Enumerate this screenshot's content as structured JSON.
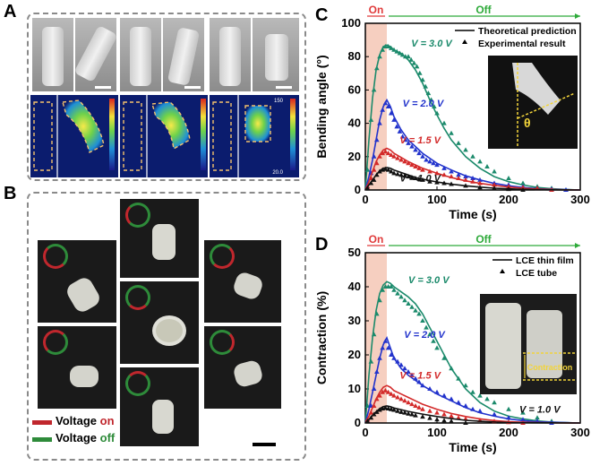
{
  "panels": {
    "a": "A",
    "b": "B",
    "c": "C",
    "d": "D"
  },
  "panel_a": {
    "colorbar_max": "150",
    "colorbar_min": "20.0"
  },
  "panel_b": {
    "legend": {
      "prefix": "Voltage",
      "on_word": "on",
      "off_word": "off",
      "on_color": "#c0272d",
      "off_color": "#2e8b3a"
    }
  },
  "colors": {
    "v30": "#1b8a6b",
    "v20": "#2233cc",
    "v15": "#d32a2a",
    "v10": "#111111",
    "on_band": "#f6cfc0",
    "on_text": "#e03a3a",
    "off_text": "#2eaa3a"
  },
  "chart_data": [
    {
      "type": "line",
      "panel": "C",
      "xlabel": "Time (s)",
      "ylabel": "Bending angle (°)",
      "xlim": [
        0,
        300
      ],
      "ylim": [
        0,
        100
      ],
      "xticks": [
        0,
        100,
        200,
        300
      ],
      "yticks": [
        0,
        20,
        40,
        60,
        80,
        100
      ],
      "on_label": "On",
      "off_label": "Off",
      "on_range": [
        0,
        30
      ],
      "legend": [
        "Theoretical prediction",
        "Experimental result"
      ],
      "inset_label": "θ",
      "series": [
        {
          "name": "V = 3.0 V",
          "color_key": "v30",
          "theory_x": [
            0,
            5,
            10,
            15,
            20,
            25,
            30,
            35,
            40,
            50,
            60,
            70,
            80,
            90,
            100,
            110,
            120,
            140,
            160,
            180,
            200,
            220,
            240,
            260,
            280,
            300
          ],
          "theory_y": [
            0,
            30,
            55,
            72,
            81,
            86,
            87,
            86,
            84,
            82,
            78,
            72,
            64,
            54,
            45,
            37,
            30,
            20,
            13,
            8,
            5,
            3,
            1.5,
            0.8,
            0.3,
            0
          ],
          "exp_x": [
            3,
            8,
            12,
            16,
            20,
            24,
            28,
            32,
            36,
            40,
            44,
            48,
            52,
            56,
            60,
            64,
            68,
            72,
            76,
            80,
            84,
            88,
            92,
            96,
            100,
            110,
            120,
            130,
            140,
            150,
            160,
            170,
            180,
            200,
            220,
            240,
            260,
            280
          ],
          "exp_y": [
            12,
            42,
            60,
            73,
            80,
            84,
            86,
            86,
            85,
            84,
            83,
            82,
            81,
            80,
            80,
            78,
            76,
            74,
            70,
            66,
            62,
            58,
            54,
            50,
            46,
            40,
            34,
            28,
            24,
            20,
            17,
            14,
            11,
            7,
            4,
            2,
            1,
            0
          ]
        },
        {
          "name": "V = 2.0 V",
          "color_key": "v20",
          "theory_x": [
            0,
            5,
            10,
            15,
            20,
            25,
            30,
            35,
            40,
            45,
            50,
            60,
            70,
            80,
            100,
            120,
            140,
            160,
            180,
            200,
            220,
            240,
            260,
            280,
            300
          ],
          "theory_y": [
            0,
            8,
            18,
            30,
            42,
            50,
            54,
            50,
            44,
            40,
            36,
            30,
            26,
            22,
            16,
            12,
            8.5,
            6,
            4,
            2.5,
            1.5,
            0.8,
            0.4,
            0.2,
            0
          ],
          "exp_x": [
            3,
            8,
            12,
            16,
            20,
            24,
            28,
            32,
            36,
            40,
            44,
            48,
            52,
            56,
            60,
            65,
            70,
            75,
            80,
            85,
            90,
            95,
            100,
            110,
            120,
            130,
            140,
            150,
            160,
            180,
            200,
            220,
            240,
            260,
            280
          ],
          "exp_y": [
            2,
            10,
            20,
            30,
            40,
            48,
            52,
            50,
            46,
            42,
            38,
            35,
            32,
            30,
            28,
            26,
            24,
            22,
            20,
            18,
            17,
            16,
            15,
            13,
            11,
            9,
            8,
            7,
            6,
            4,
            3,
            2,
            1,
            0.5,
            0
          ]
        },
        {
          "name": "V = 1.5 V",
          "color_key": "v15",
          "theory_x": [
            0,
            5,
            10,
            15,
            20,
            25,
            30,
            35,
            40,
            50,
            60,
            70,
            80,
            100,
            120,
            140,
            160,
            180,
            200,
            220,
            240,
            260,
            280,
            300
          ],
          "theory_y": [
            0,
            5,
            11,
            17,
            21,
            24,
            25,
            24,
            22,
            19.5,
            17,
            15,
            13,
            10,
            7.5,
            5.5,
            4,
            2.8,
            1.8,
            1.1,
            0.6,
            0.3,
            0.1,
            0
          ],
          "exp_x": [
            3,
            8,
            12,
            16,
            20,
            24,
            28,
            32,
            36,
            40,
            45,
            50,
            55,
            60,
            65,
            70,
            75,
            80,
            90,
            100,
            110,
            120,
            130,
            140,
            150,
            160,
            180,
            200,
            220,
            240,
            260
          ],
          "exp_y": [
            2,
            7,
            12,
            16,
            20,
            22,
            23,
            22,
            21,
            20,
            19,
            18,
            17,
            16,
            15,
            14,
            13,
            12,
            11,
            10,
            9,
            8,
            7,
            6,
            5,
            4,
            3,
            2,
            1.5,
            1,
            0
          ]
        },
        {
          "name": "V = 1.0 V",
          "color_key": "v10",
          "theory_x": [
            0,
            5,
            10,
            15,
            20,
            25,
            30,
            35,
            40,
            50,
            60,
            70,
            80,
            100,
            120,
            140,
            160,
            180,
            200,
            220,
            240,
            260,
            300
          ],
          "theory_y": [
            0,
            3,
            6,
            9,
            11.5,
            13,
            13.5,
            13,
            12,
            10.5,
            9,
            7.5,
            6.5,
            4.8,
            3.5,
            2.5,
            1.7,
            1.1,
            0.7,
            0.4,
            0.2,
            0.1,
            0
          ],
          "exp_x": [
            3,
            8,
            12,
            16,
            20,
            24,
            28,
            32,
            36,
            40,
            45,
            50,
            55,
            60,
            65,
            70,
            75,
            80,
            90,
            100,
            110,
            120,
            140,
            160,
            180,
            200,
            220
          ],
          "exp_y": [
            1,
            4,
            6,
            9,
            11,
            12,
            12.5,
            12,
            11,
            10,
            9.5,
            9,
            8.5,
            8,
            7.5,
            7,
            6.5,
            6,
            5,
            4.5,
            4,
            3.5,
            2.5,
            1.5,
            1,
            0.5,
            0
          ]
        }
      ]
    },
    {
      "type": "line",
      "panel": "D",
      "xlabel": "Time (s)",
      "ylabel": "Contraction (%)",
      "xlim": [
        0,
        300
      ],
      "ylim": [
        0,
        50
      ],
      "xticks": [
        0,
        100,
        200,
        300
      ],
      "yticks": [
        0,
        10,
        20,
        30,
        40,
        50
      ],
      "on_label": "On",
      "off_label": "Off",
      "on_range": [
        0,
        30
      ],
      "legend": [
        "LCE thin film",
        "LCE tube"
      ],
      "inset_label": "Contraction",
      "series": [
        {
          "name": "V = 3.0 V",
          "color_key": "v30",
          "theory_x": [
            0,
            5,
            10,
            15,
            20,
            25,
            30,
            35,
            40,
            50,
            60,
            70,
            80,
            90,
            100,
            110,
            120,
            140,
            160,
            180,
            200,
            220,
            240,
            260,
            280,
            300
          ],
          "theory_y": [
            0,
            14,
            25,
            33,
            38,
            40.5,
            41.5,
            41,
            40,
            38.5,
            37,
            35,
            32,
            28,
            24,
            20,
            16,
            10,
            6,
            3.5,
            2,
            1.2,
            0.6,
            0.3,
            0.1,
            0
          ],
          "exp_x": [
            3,
            8,
            12,
            16,
            20,
            24,
            28,
            32,
            36,
            40,
            45,
            50,
            55,
            60,
            65,
            70,
            75,
            80,
            85,
            90,
            95,
            100,
            110,
            120,
            130,
            140,
            150,
            160,
            170,
            180,
            200,
            220,
            240,
            260
          ],
          "exp_y": [
            5,
            18,
            26,
            32,
            36,
            39,
            40,
            40,
            40,
            39,
            38,
            37,
            36,
            35,
            34,
            33,
            32,
            30,
            28,
            26,
            24,
            22,
            19,
            16,
            13,
            11,
            9,
            8,
            7,
            6,
            4,
            3,
            1.5,
            0.5
          ]
        },
        {
          "name": "V = 2.0 V",
          "color_key": "v20",
          "theory_x": [
            0,
            5,
            10,
            15,
            20,
            25,
            30,
            35,
            40,
            50,
            60,
            70,
            80,
            100,
            120,
            140,
            160,
            180,
            200,
            220,
            240,
            260,
            280,
            300
          ],
          "theory_y": [
            0,
            4,
            9,
            14,
            19,
            23,
            25,
            22,
            19,
            16,
            14,
            12.5,
            11,
            8.5,
            6.5,
            4.5,
            3,
            2,
            1.2,
            0.7,
            0.4,
            0.2,
            0.1,
            0
          ],
          "exp_x": [
            3,
            8,
            12,
            16,
            20,
            24,
            28,
            32,
            36,
            40,
            45,
            50,
            55,
            60,
            65,
            70,
            75,
            80,
            90,
            100,
            110,
            120,
            130,
            140,
            150,
            160,
            180,
            200,
            220,
            240,
            260
          ],
          "exp_y": [
            1,
            5,
            10,
            15,
            19,
            22,
            24,
            22,
            20,
            19,
            18,
            17,
            16,
            15,
            14,
            13,
            12,
            11,
            10,
            9,
            8,
            7,
            6,
            5,
            4,
            3.5,
            2.5,
            1.5,
            1,
            0.5,
            0
          ]
        },
        {
          "name": "V = 1.5 V",
          "color_key": "v15",
          "theory_x": [
            0,
            5,
            10,
            15,
            20,
            25,
            30,
            35,
            40,
            50,
            60,
            70,
            80,
            100,
            120,
            140,
            160,
            180,
            200,
            220,
            240,
            300
          ],
          "theory_y": [
            0,
            2,
            4.5,
            7,
            9,
            10.5,
            11,
            10.5,
            9.5,
            8.5,
            7.5,
            6.5,
            5.5,
            4,
            2.8,
            1.9,
            1.2,
            0.7,
            0.4,
            0.2,
            0.1,
            0
          ],
          "exp_x": [
            3,
            8,
            12,
            16,
            20,
            24,
            28,
            32,
            36,
            40,
            45,
            50,
            55,
            60,
            65,
            70,
            75,
            80,
            90,
            100,
            110,
            120,
            130,
            140,
            160,
            180,
            200,
            220
          ],
          "exp_y": [
            1,
            3,
            5,
            7,
            8,
            9,
            9.5,
            9,
            8.5,
            8,
            7.5,
            7,
            6.5,
            6,
            5.5,
            5,
            4.5,
            4,
            3.5,
            3,
            2.5,
            2,
            1.5,
            1.2,
            0.8,
            0.5,
            0.2,
            0
          ]
        },
        {
          "name": "V = 1.0 V",
          "color_key": "v10",
          "theory_x": [
            0,
            5,
            10,
            15,
            20,
            25,
            30,
            35,
            40,
            50,
            60,
            70,
            80,
            100,
            120,
            140,
            160,
            180,
            200,
            300
          ],
          "theory_y": [
            0,
            1,
            2.2,
            3.3,
            4.2,
            4.8,
            5,
            4.8,
            4.4,
            3.9,
            3.4,
            3,
            2.6,
            1.9,
            1.3,
            0.8,
            0.5,
            0.3,
            0.1,
            0
          ],
          "exp_x": [
            3,
            8,
            12,
            16,
            20,
            24,
            28,
            32,
            36,
            40,
            45,
            50,
            55,
            60,
            65,
            70,
            80,
            90,
            100,
            110,
            120,
            140
          ],
          "exp_y": [
            0.5,
            1.5,
            2.5,
            3.2,
            3.8,
            4.2,
            4.4,
            4.2,
            4,
            3.8,
            3.5,
            3.2,
            3,
            2.7,
            2.5,
            2.2,
            1.8,
            1.4,
            1,
            0.7,
            0.5,
            0
          ]
        }
      ]
    }
  ]
}
